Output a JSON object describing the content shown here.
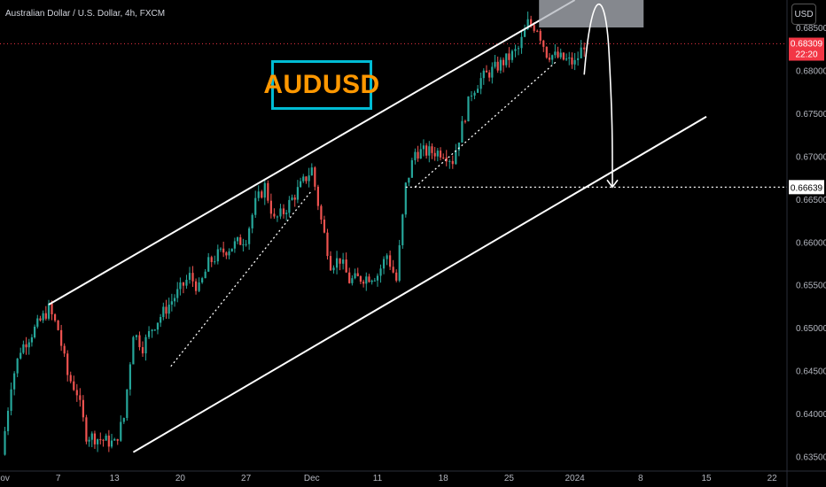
{
  "header": {
    "title": "Australian Dollar / U.S. Dollar, 4h, FXCM"
  },
  "currency_button": "USD",
  "chart_label": "AUDUSD",
  "price_badge": {
    "price": "0.68309",
    "countdown": "22:20",
    "color": "#f23645"
  },
  "target_badge": {
    "price": "0.66639"
  },
  "colors": {
    "up": "#26a69a",
    "down": "#ef5350",
    "label_border": "#00bcd4",
    "label_text": "#ff9800"
  },
  "chart_data": {
    "type": "candlestick",
    "symbol": "AUDUSD",
    "interval": "4h",
    "ylim": [
      0.6333,
      0.6882
    ],
    "y_ticks": [
      "0.68500",
      "0.68000",
      "0.67500",
      "0.67000",
      "0.66500",
      "0.66000",
      "0.65500",
      "0.65000",
      "0.64500",
      "0.64000",
      "0.63500"
    ],
    "y_tick_values": [
      0.685,
      0.68,
      0.675,
      0.67,
      0.665,
      0.66,
      0.655,
      0.65,
      0.645,
      0.64,
      0.635
    ],
    "x_ticks": [
      "Nov",
      "7",
      "13",
      "20",
      "27",
      "Dec",
      "11",
      "18",
      "25",
      "2024",
      "8",
      "15",
      "22"
    ],
    "x_tick_dates": [
      "2023-11-01",
      "2023-11-07",
      "2023-11-13",
      "2023-11-20",
      "2023-11-27",
      "2023-12-04",
      "2023-12-11",
      "2023-12-18",
      "2023-12-25",
      "2024-01-01",
      "2024-01-08",
      "2024-01-15",
      "2024-01-22"
    ],
    "price_path": [
      [
        "2023-11-01",
        0.6352
      ],
      [
        "2023-11-02",
        0.6435
      ],
      [
        "2023-11-03",
        0.6475
      ],
      [
        "2023-11-06",
        0.6522
      ],
      [
        "2023-11-07",
        0.6498
      ],
      [
        "2023-11-08",
        0.6445
      ],
      [
        "2023-11-09",
        0.6425
      ],
      [
        "2023-11-10",
        0.6375
      ],
      [
        "2023-11-13",
        0.6365
      ],
      [
        "2023-11-14",
        0.6395
      ],
      [
        "2023-11-15",
        0.6495
      ],
      [
        "2023-11-16",
        0.6478
      ],
      [
        "2023-11-17",
        0.65
      ],
      [
        "2023-11-20",
        0.6545
      ],
      [
        "2023-11-21",
        0.656
      ],
      [
        "2023-11-22",
        0.6545
      ],
      [
        "2023-11-23",
        0.6575
      ],
      [
        "2023-11-24",
        0.6585
      ],
      [
        "2023-11-27",
        0.6605
      ],
      [
        "2023-11-28",
        0.6645
      ],
      [
        "2023-11-29",
        0.6665
      ],
      [
        "2023-11-30",
        0.6625
      ],
      [
        "2023-12-01",
        0.6635
      ],
      [
        "2023-12-04",
        0.6685
      ],
      [
        "2023-12-05",
        0.6625
      ],
      [
        "2023-12-06",
        0.6575
      ],
      [
        "2023-12-07",
        0.658
      ],
      [
        "2023-12-08",
        0.6555
      ],
      [
        "2023-12-11",
        0.6562
      ],
      [
        "2023-12-12",
        0.6585
      ],
      [
        "2023-12-13",
        0.6555
      ],
      [
        "2023-12-14",
        0.6665
      ],
      [
        "2023-12-15",
        0.6705
      ],
      [
        "2023-12-18",
        0.6705
      ],
      [
        "2023-12-19",
        0.6695
      ],
      [
        "2023-12-20",
        0.6735
      ],
      [
        "2023-12-21",
        0.6775
      ],
      [
        "2023-12-22",
        0.679
      ],
      [
        "2023-12-25",
        0.6815
      ],
      [
        "2023-12-26",
        0.6825
      ],
      [
        "2023-12-27",
        0.6855
      ],
      [
        "2023-12-28",
        0.685
      ],
      [
        "2023-12-29",
        0.682
      ],
      [
        "2024-01-01",
        0.6808
      ],
      [
        "2024-01-02",
        0.6831
      ]
    ]
  }
}
